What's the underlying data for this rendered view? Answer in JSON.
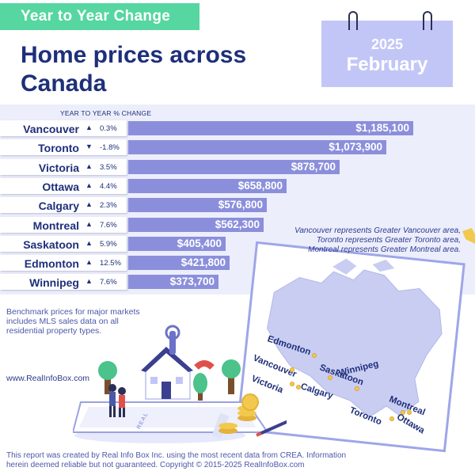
{
  "header": {
    "tag": "Year to Year Change",
    "title_line1": "Home prices across",
    "title_line2": "Canada"
  },
  "calendar": {
    "year": "2025",
    "month": "February"
  },
  "chart_data": {
    "type": "bar",
    "orientation": "horizontal",
    "column_header": "YEAR TO YEAR % CHANGE",
    "categories": [
      "Vancouver",
      "Toronto",
      "Victoria",
      "Ottawa",
      "Calgary",
      "Montreal",
      "Saskatoon",
      "Edmonton",
      "Winnipeg"
    ],
    "values": [
      1185100,
      1073900,
      878700,
      658800,
      576800,
      562300,
      405400,
      421800,
      373700
    ],
    "value_labels": [
      "$1,185,100",
      "$1,073,900",
      "$878,700",
      "$658,800",
      "$576,800",
      "$562,300",
      "$405,400",
      "$421,800",
      "$373,700"
    ],
    "pct_change": [
      "0.3%",
      "-1.8%",
      "3.5%",
      "4.4%",
      "2.3%",
      "7.6%",
      "5.9%",
      "12.5%",
      "7.6%"
    ],
    "direction": [
      "up",
      "down",
      "up",
      "up",
      "up",
      "up",
      "up",
      "up",
      "up"
    ],
    "bar_color": "#8b8fdb",
    "xlim": [
      0,
      1185100
    ],
    "grid": false,
    "legend": "none"
  },
  "note": {
    "line1": "Vancouver represents Greater Vancouver area,",
    "line2": "Toronto represents Greater Toronto area,",
    "line3": "Montreal represents Greater Montreal area."
  },
  "benchmark": {
    "line1": "Benchmark prices for major markets",
    "line2": "includes MLS sales data on all",
    "line3": "residential property types."
  },
  "website": "www.RealInfoBox.com",
  "footer": {
    "line1": "This report was created by Real Info Box Inc. using the most recent data from CREA. Information",
    "line2": "herein deemed reliable but not guaranteed. Copyright © 2015-2025 RealInfoBox.com"
  },
  "map": {
    "labels": [
      "Edmonton",
      "Vancouver",
      "Saskatoon",
      "Victoria",
      "Calgary",
      "Winnipeg",
      "Montreal",
      "Toronto",
      "Ottawa"
    ]
  },
  "illustration": {
    "sign_text": "REAL"
  },
  "colors": {
    "brand_green": "#56d6a0",
    "title_navy": "#1e2f7a",
    "bar": "#8b8fdb",
    "calendar": "#c2c6f7",
    "band": "#eceefb"
  },
  "icons": {
    "up": "triangle-up-icon",
    "down": "triangle-down-icon"
  }
}
